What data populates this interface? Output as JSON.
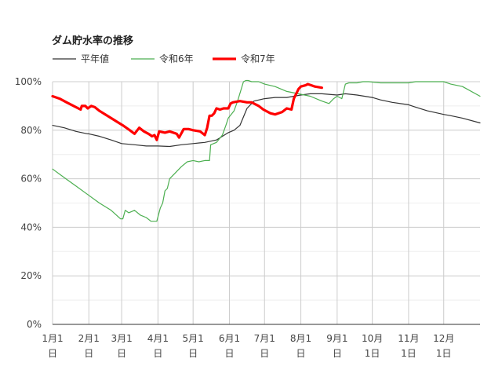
{
  "chart_data": {
    "type": "line",
    "title": "ダム貯水率の推移",
    "xlabel": "",
    "ylabel": "",
    "ylim": [
      0,
      100
    ],
    "y_ticks": [
      "0%",
      "20%",
      "40%",
      "60%",
      "80%",
      "100%"
    ],
    "y_tick_values": [
      0,
      20,
      40,
      60,
      80,
      100
    ],
    "x_ticks": [
      {
        "line1": "1月1",
        "line2": "日",
        "day": 0
      },
      {
        "line1": "2月1",
        "line2": "日",
        "day": 31
      },
      {
        "line1": "3月1",
        "line2": "日",
        "day": 59
      },
      {
        "line1": "4月1",
        "line2": "日",
        "day": 90
      },
      {
        "line1": "5月1",
        "line2": "日",
        "day": 120
      },
      {
        "line1": "6月1",
        "line2": "日",
        "day": 151
      },
      {
        "line1": "7月1",
        "line2": "日",
        "day": 181
      },
      {
        "line1": "8月1",
        "line2": "日",
        "day": 212
      },
      {
        "line1": "9月1",
        "line2": "日",
        "day": 243
      },
      {
        "line1": "10月",
        "line2": "1日",
        "day": 273
      },
      {
        "line1": "11月",
        "line2": "1日",
        "day": 304
      },
      {
        "line1": "12月",
        "line2": "1日",
        "day": 334
      }
    ],
    "xlim": [
      0,
      365
    ],
    "grid": true,
    "legend_position": "top-left",
    "series": [
      {
        "name": "平年値",
        "color": "#333333",
        "x": [
          0,
          10,
          20,
          30,
          31,
          40,
          50,
          59,
          70,
          80,
          90,
          100,
          110,
          120,
          130,
          140,
          150,
          155,
          160,
          166,
          172,
          181,
          190,
          200,
          212,
          220,
          230,
          243,
          250,
          260,
          273,
          280,
          290,
          304,
          310,
          320,
          334,
          340,
          350,
          365
        ],
        "values": [
          82,
          81,
          79.5,
          78.5,
          78.5,
          77.5,
          76,
          74.5,
          74,
          73.5,
          73.5,
          73.3,
          74,
          74.5,
          75,
          76,
          79,
          80,
          82,
          89,
          92,
          93,
          93.5,
          93.5,
          94.5,
          95,
          95,
          94.5,
          95,
          94.5,
          93.5,
          92.5,
          91.5,
          90.5,
          89.5,
          88,
          86.5,
          86,
          85,
          83
        ]
      },
      {
        "name": "令和6年",
        "color": "#4caf50",
        "x": [
          0,
          10,
          20,
          30,
          40,
          50,
          58,
          60,
          62,
          65,
          70,
          75,
          80,
          84,
          89,
          92,
          94,
          96,
          98,
          100,
          104,
          106,
          110,
          115,
          120,
          125,
          130,
          134,
          135,
          140,
          145,
          148,
          150,
          155,
          158,
          163,
          165,
          167,
          170,
          176,
          181,
          190,
          200,
          210,
          220,
          230,
          236,
          240,
          243,
          247,
          250,
          253,
          255,
          260,
          265,
          270,
          280,
          290,
          300,
          304,
          310,
          320,
          334,
          340,
          350,
          365
        ],
        "values": [
          64,
          60.5,
          57,
          53.5,
          50,
          47,
          43.5,
          43.5,
          47,
          46,
          47,
          45,
          44,
          42.5,
          42.5,
          48,
          50,
          55,
          56,
          60,
          62,
          63,
          65,
          67,
          67.5,
          67,
          67.5,
          67.5,
          74,
          75,
          78,
          82,
          85,
          88,
          92,
          100,
          100.5,
          100.5,
          100,
          100,
          99,
          98,
          96,
          95,
          94,
          92,
          91,
          93,
          94,
          93,
          99,
          99.5,
          99.5,
          99.5,
          100,
          100,
          99.5,
          99.5,
          99.5,
          99.5,
          100,
          100,
          100,
          99,
          98,
          94
        ]
      },
      {
        "name": "令和7年",
        "color": "#ff0000",
        "x": [
          0,
          6,
          12,
          18,
          24,
          25,
          28,
          30,
          33,
          36,
          40,
          45,
          50,
          55,
          60,
          66,
          70,
          74,
          78,
          82,
          85,
          87,
          89,
          91,
          96,
          100,
          106,
          108,
          112,
          116,
          120,
          126,
          130,
          132,
          134,
          136,
          138,
          140,
          143,
          146,
          150,
          152,
          154,
          160,
          166,
          170,
          176,
          180,
          186,
          190,
          196,
          200,
          204,
          206,
          208,
          210,
          212,
          216,
          218,
          221,
          224,
          230
        ],
        "values": [
          94,
          93,
          91.5,
          90,
          88.5,
          90,
          90,
          89,
          90,
          89.5,
          88,
          86.5,
          85,
          83.5,
          82,
          80,
          78.5,
          81,
          79.5,
          78.5,
          77.5,
          78,
          76,
          79.5,
          79,
          79.5,
          78.5,
          77,
          80.5,
          80.5,
          80,
          79.5,
          78,
          81,
          86,
          86,
          87,
          89,
          88.5,
          89,
          89,
          91,
          91.5,
          92,
          91.5,
          91.5,
          90,
          88.5,
          87,
          86.5,
          87.5,
          89,
          88.5,
          93,
          95,
          97,
          98,
          98.5,
          99,
          98.5,
          98,
          97.5
        ]
      }
    ]
  }
}
